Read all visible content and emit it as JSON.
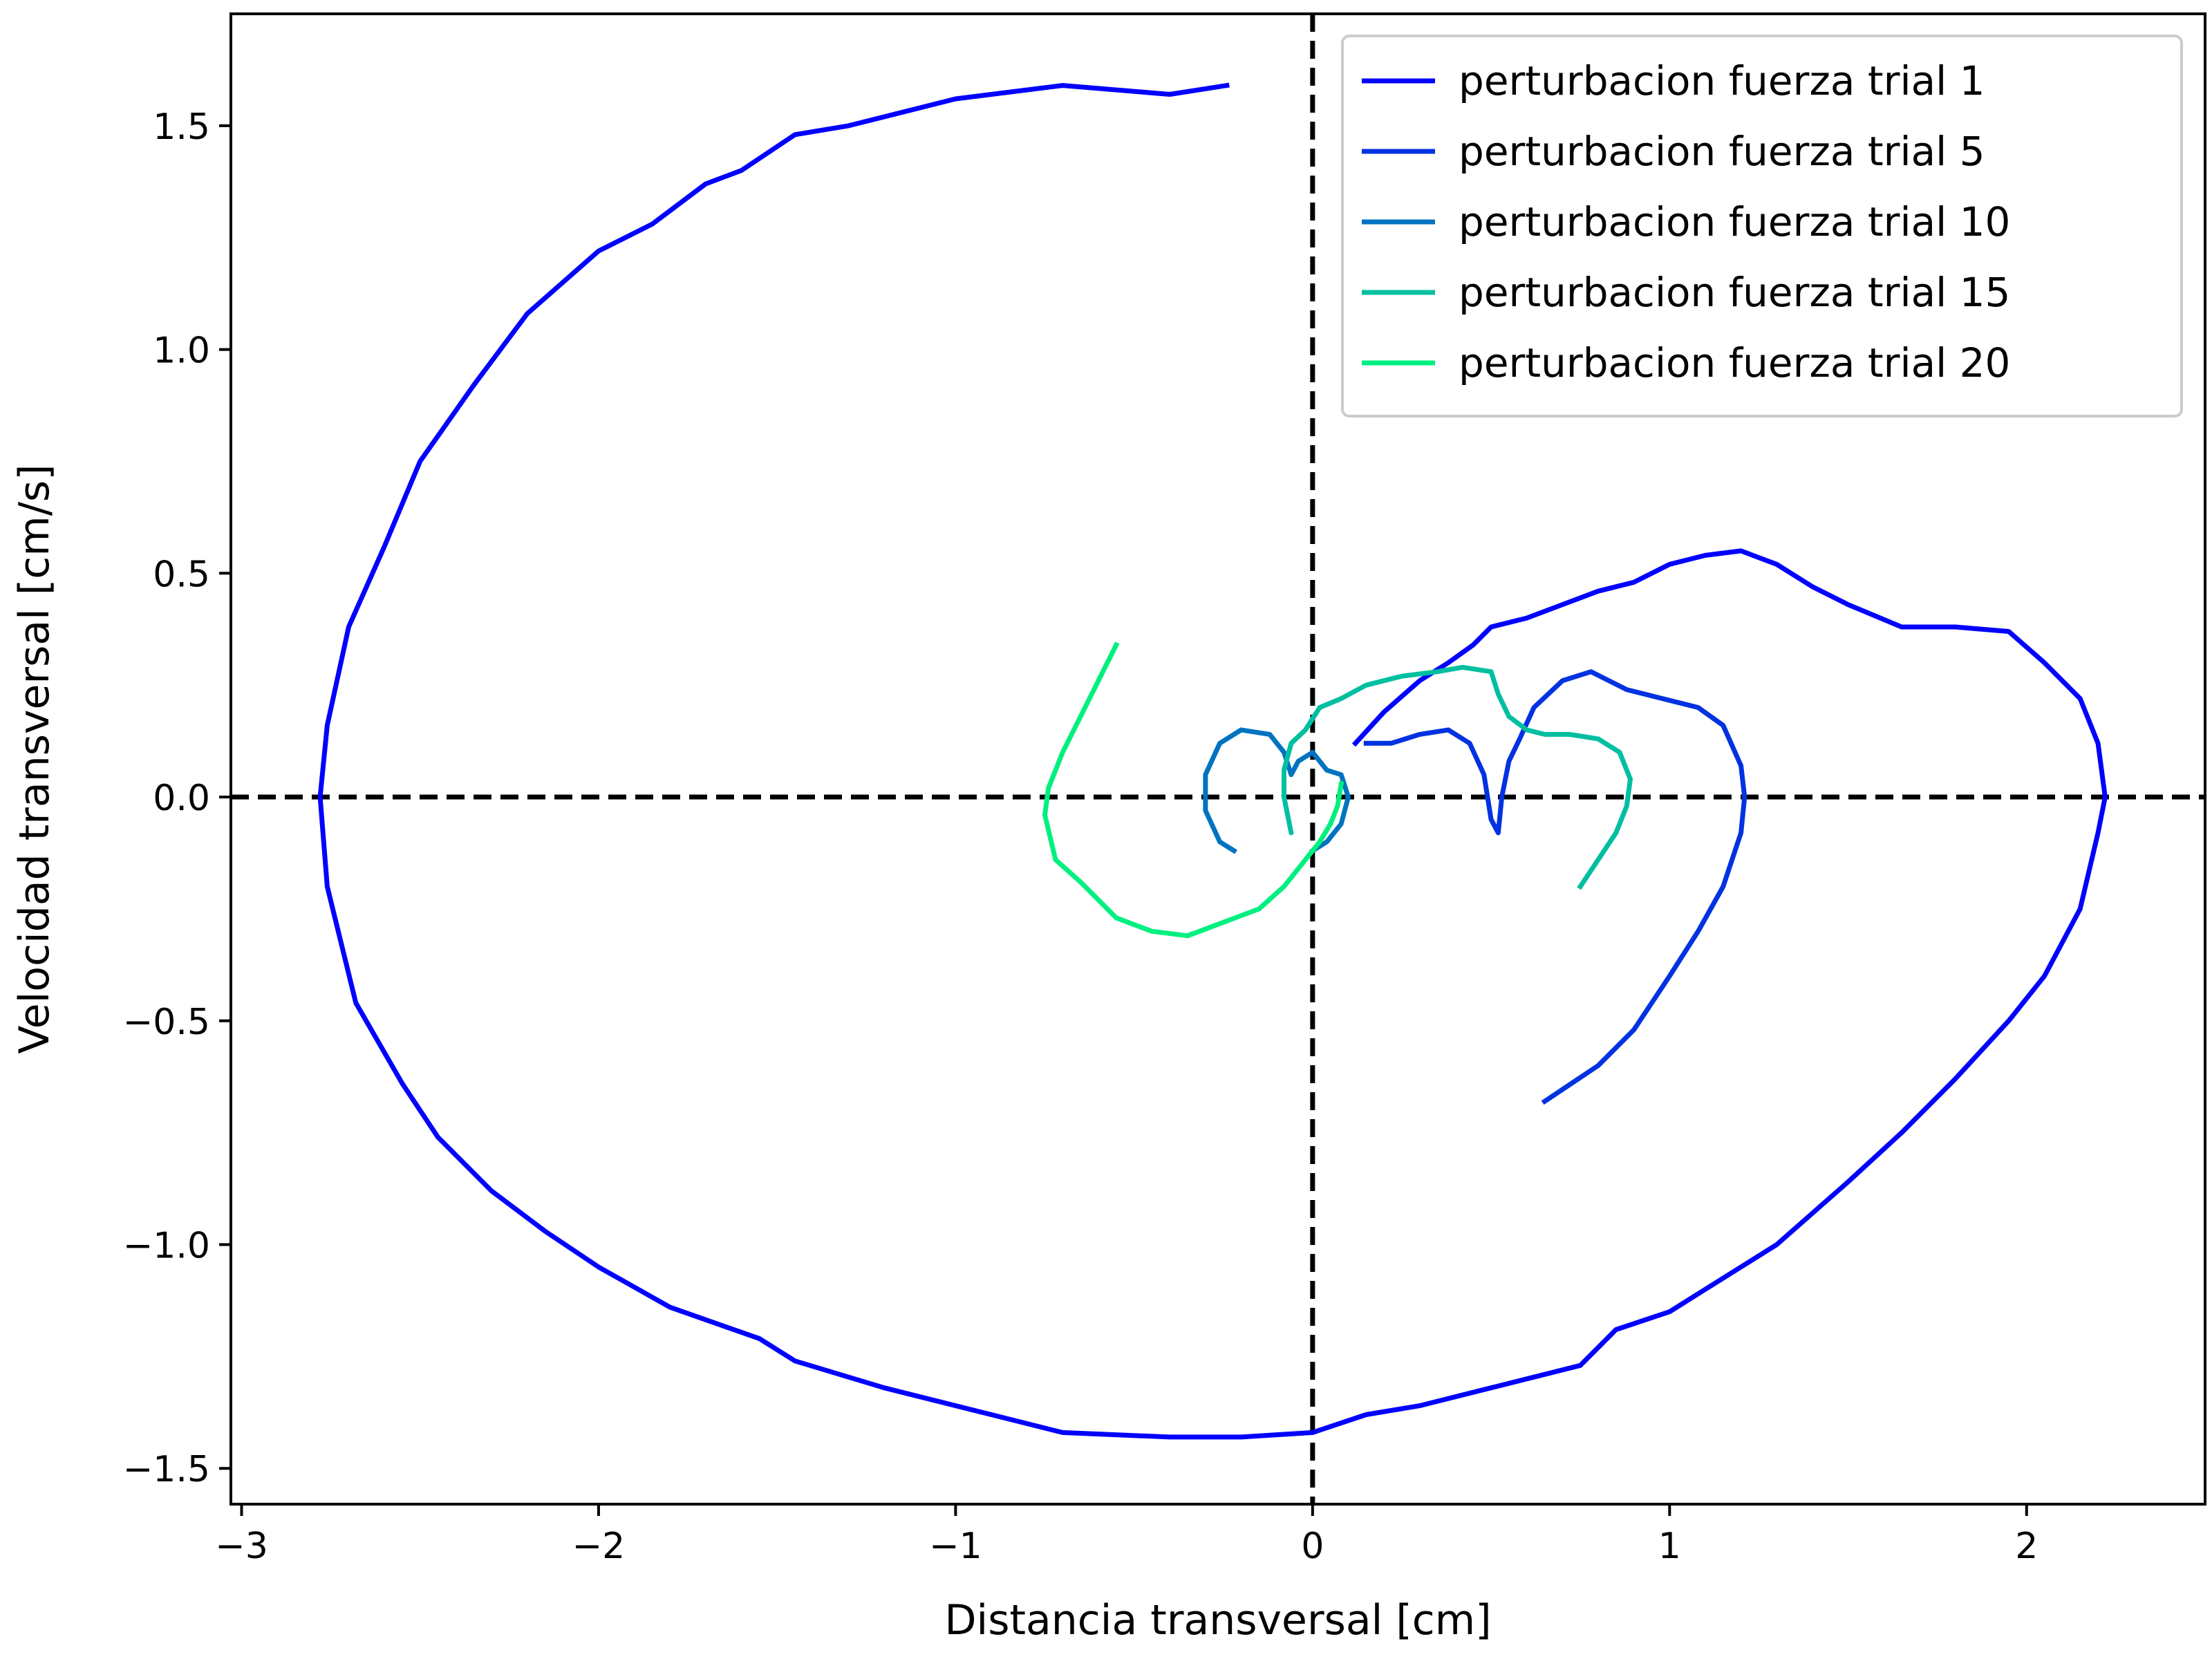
{
  "chart_data": {
    "type": "line",
    "title": "",
    "xlabel": "Distancia transversal [cm]",
    "ylabel": "Velocidad transversal [cm/s]",
    "xlim": [
      -3.03,
      2.5
    ],
    "ylim": [
      -1.58,
      1.75
    ],
    "xticks": [
      -3,
      -2,
      -1,
      0,
      1,
      2
    ],
    "yticks": [
      -1.5,
      -1.0,
      -0.5,
      0.0,
      0.5,
      1.0,
      1.5
    ],
    "xtick_labels": [
      "−3",
      "−2",
      "−1",
      "0",
      "1",
      "2"
    ],
    "ytick_labels": [
      "−1.5",
      "−1.0",
      "−0.5",
      "0.0",
      "0.5",
      "1.0",
      "1.5"
    ],
    "grid": false,
    "legend_position": "top-right",
    "reference_lines": [
      {
        "orientation": "vertical",
        "value": 0,
        "style": "dashed",
        "color": "#000000"
      },
      {
        "orientation": "horizontal",
        "value": 0,
        "style": "dashed",
        "color": "#000000"
      }
    ],
    "series": [
      {
        "name": "perturbacion fuerza trial 1",
        "color": "#0000ff",
        "points": [
          [
            -0.24,
            1.59
          ],
          [
            -0.4,
            1.57
          ],
          [
            -0.7,
            1.59
          ],
          [
            -1.0,
            1.56
          ],
          [
            -1.3,
            1.5
          ],
          [
            -1.45,
            1.48
          ],
          [
            -1.6,
            1.4
          ],
          [
            -1.7,
            1.37
          ],
          [
            -1.85,
            1.28
          ],
          [
            -2.0,
            1.22
          ],
          [
            -2.2,
            1.08
          ],
          [
            -2.35,
            0.92
          ],
          [
            -2.5,
            0.75
          ],
          [
            -2.6,
            0.56
          ],
          [
            -2.7,
            0.38
          ],
          [
            -2.76,
            0.16
          ],
          [
            -2.78,
            0.0
          ],
          [
            -2.76,
            -0.2
          ],
          [
            -2.68,
            -0.46
          ],
          [
            -2.55,
            -0.64
          ],
          [
            -2.45,
            -0.76
          ],
          [
            -2.3,
            -0.88
          ],
          [
            -2.15,
            -0.97
          ],
          [
            -2.0,
            -1.05
          ],
          [
            -1.8,
            -1.14
          ],
          [
            -1.55,
            -1.21
          ],
          [
            -1.45,
            -1.26
          ],
          [
            -1.2,
            -1.32
          ],
          [
            -0.9,
            -1.38
          ],
          [
            -0.7,
            -1.42
          ],
          [
            -0.4,
            -1.43
          ],
          [
            -0.2,
            -1.43
          ],
          [
            0.0,
            -1.42
          ],
          [
            0.15,
            -1.38
          ],
          [
            0.3,
            -1.36
          ],
          [
            0.5,
            -1.32
          ],
          [
            0.75,
            -1.27
          ],
          [
            0.85,
            -1.19
          ],
          [
            1.0,
            -1.15
          ],
          [
            1.1,
            -1.1
          ],
          [
            1.3,
            -1.0
          ],
          [
            1.5,
            -0.86
          ],
          [
            1.65,
            -0.75
          ],
          [
            1.8,
            -0.63
          ],
          [
            1.95,
            -0.5
          ],
          [
            2.05,
            -0.4
          ],
          [
            2.15,
            -0.25
          ],
          [
            2.2,
            -0.08
          ],
          [
            2.22,
            0.0
          ],
          [
            2.2,
            0.12
          ],
          [
            2.15,
            0.22
          ],
          [
            2.05,
            0.3
          ],
          [
            1.95,
            0.37
          ],
          [
            1.8,
            0.38
          ],
          [
            1.65,
            0.38
          ],
          [
            1.5,
            0.43
          ],
          [
            1.4,
            0.47
          ],
          [
            1.3,
            0.52
          ],
          [
            1.2,
            0.55
          ],
          [
            1.1,
            0.54
          ],
          [
            1.0,
            0.52
          ],
          [
            0.9,
            0.48
          ],
          [
            0.8,
            0.46
          ],
          [
            0.7,
            0.43
          ],
          [
            0.6,
            0.4
          ],
          [
            0.5,
            0.38
          ],
          [
            0.45,
            0.34
          ],
          [
            0.38,
            0.3
          ],
          [
            0.3,
            0.26
          ],
          [
            0.2,
            0.19
          ],
          [
            0.12,
            0.12
          ]
        ]
      },
      {
        "name": "perturbacion fuerza trial 5",
        "color": "#0032e1",
        "points": [
          [
            0.65,
            -0.68
          ],
          [
            0.8,
            -0.6
          ],
          [
            0.9,
            -0.52
          ],
          [
            1.0,
            -0.4
          ],
          [
            1.08,
            -0.3
          ],
          [
            1.15,
            -0.2
          ],
          [
            1.2,
            -0.08
          ],
          [
            1.21,
            0.0
          ],
          [
            1.2,
            0.07
          ],
          [
            1.15,
            0.16
          ],
          [
            1.08,
            0.2
          ],
          [
            0.98,
            0.22
          ],
          [
            0.88,
            0.24
          ],
          [
            0.78,
            0.28
          ],
          [
            0.7,
            0.26
          ],
          [
            0.62,
            0.2
          ],
          [
            0.58,
            0.13
          ],
          [
            0.55,
            0.08
          ],
          [
            0.53,
            0.0
          ],
          [
            0.52,
            -0.08
          ],
          [
            0.5,
            -0.05
          ],
          [
            0.48,
            0.05
          ],
          [
            0.44,
            0.12
          ],
          [
            0.38,
            0.15
          ],
          [
            0.3,
            0.14
          ],
          [
            0.22,
            0.12
          ],
          [
            0.15,
            0.12
          ]
        ]
      },
      {
        "name": "perturbacion fuerza trial 10",
        "color": "#0073c0",
        "points": [
          [
            -0.22,
            -0.12
          ],
          [
            -0.26,
            -0.1
          ],
          [
            -0.3,
            -0.03
          ],
          [
            -0.3,
            0.05
          ],
          [
            -0.26,
            0.12
          ],
          [
            -0.2,
            0.15
          ],
          [
            -0.12,
            0.14
          ],
          [
            -0.08,
            0.1
          ],
          [
            -0.06,
            0.05
          ],
          [
            -0.04,
            0.08
          ],
          [
            0.0,
            0.1
          ],
          [
            0.04,
            0.06
          ],
          [
            0.08,
            0.05
          ],
          [
            0.1,
            0.0
          ],
          [
            0.08,
            -0.06
          ],
          [
            0.04,
            -0.1
          ],
          [
            0.0,
            -0.12
          ]
        ]
      },
      {
        "name": "perturbacion fuerza trial 15",
        "color": "#00bfa0",
        "points": [
          [
            0.75,
            -0.2
          ],
          [
            0.8,
            -0.14
          ],
          [
            0.85,
            -0.08
          ],
          [
            0.88,
            -0.02
          ],
          [
            0.89,
            0.04
          ],
          [
            0.86,
            0.1
          ],
          [
            0.8,
            0.13
          ],
          [
            0.72,
            0.14
          ],
          [
            0.65,
            0.14
          ],
          [
            0.6,
            0.15
          ],
          [
            0.55,
            0.18
          ],
          [
            0.52,
            0.23
          ],
          [
            0.5,
            0.28
          ],
          [
            0.42,
            0.29
          ],
          [
            0.35,
            0.28
          ],
          [
            0.25,
            0.27
          ],
          [
            0.15,
            0.25
          ],
          [
            0.08,
            0.22
          ],
          [
            0.02,
            0.2
          ],
          [
            -0.02,
            0.15
          ],
          [
            -0.06,
            0.12
          ],
          [
            -0.08,
            0.06
          ],
          [
            -0.08,
            0.0
          ],
          [
            -0.07,
            -0.04
          ],
          [
            -0.06,
            -0.08
          ],
          [
            -0.08,
            0.0
          ]
        ]
      },
      {
        "name": "perturbacion fuerza trial 20",
        "color": "#00f080",
        "points": [
          [
            -0.55,
            0.34
          ],
          [
            -0.6,
            0.26
          ],
          [
            -0.65,
            0.18
          ],
          [
            -0.7,
            0.1
          ],
          [
            -0.74,
            0.02
          ],
          [
            -0.75,
            -0.04
          ],
          [
            -0.72,
            -0.14
          ],
          [
            -0.65,
            -0.19
          ],
          [
            -0.55,
            -0.27
          ],
          [
            -0.45,
            -0.3
          ],
          [
            -0.35,
            -0.31
          ],
          [
            -0.25,
            -0.28
          ],
          [
            -0.15,
            -0.25
          ],
          [
            -0.08,
            -0.2
          ],
          [
            -0.02,
            -0.14
          ],
          [
            0.02,
            -0.1
          ],
          [
            0.05,
            -0.06
          ],
          [
            0.07,
            -0.02
          ],
          [
            0.08,
            0.03
          ]
        ]
      }
    ]
  }
}
